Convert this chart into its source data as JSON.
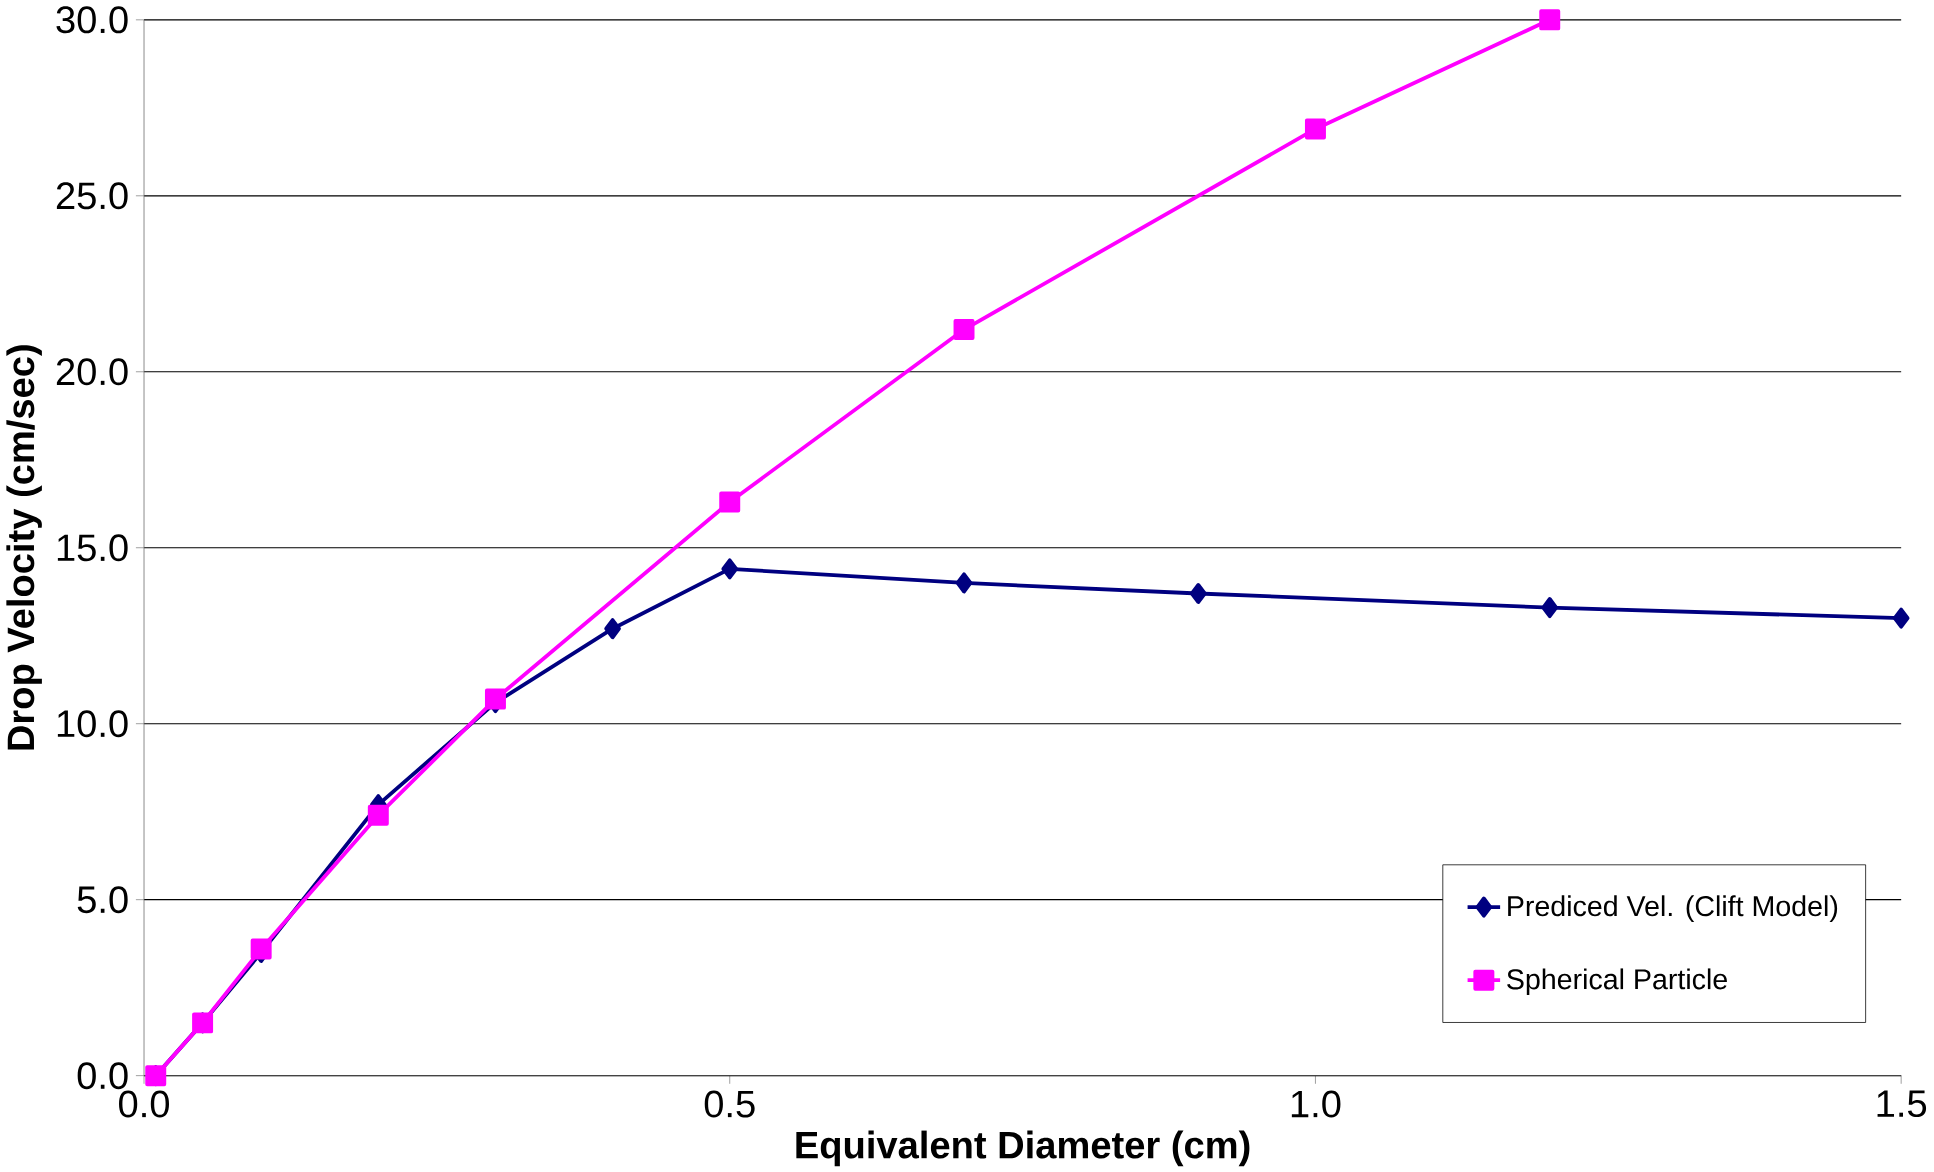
{
  "chart_data": {
    "type": "line",
    "xlabel": "Equivalent Diameter (cm)",
    "ylabel": "Drop Velocity (cm/sec)",
    "xlim": [
      0,
      1.5
    ],
    "ylim": [
      0,
      30
    ],
    "xticks": [
      {
        "value": 0,
        "label": "0.0"
      },
      {
        "value": 0.5,
        "label": "0.5"
      },
      {
        "value": 1,
        "label": "1.0"
      },
      {
        "value": 1.5,
        "label": "1.5"
      }
    ],
    "yticks": [
      {
        "value": 0,
        "label": "0.0"
      },
      {
        "value": 5,
        "label": "5.0"
      },
      {
        "value": 10,
        "label": "10.0"
      },
      {
        "value": 15,
        "label": "15.0"
      },
      {
        "value": 20,
        "label": "20.0"
      },
      {
        "value": 25,
        "label": "25.0"
      },
      {
        "value": 30,
        "label": "30.0"
      }
    ],
    "grid": "y",
    "legend": "bottom right",
    "series": [
      {
        "name": "Prediced Vel. (Clift Model)",
        "color": "#000080",
        "marker": "diamond",
        "x": [
          0.01,
          0.05,
          0.1,
          0.2,
          0.3,
          0.4,
          0.5,
          0.7,
          0.9,
          1.2,
          1.5
        ],
        "values": [
          0,
          1.5,
          3.5,
          7.7,
          10.6,
          12.7,
          14.4,
          14.0,
          13.7,
          13.3,
          13.0
        ]
      },
      {
        "name": "Spherical Particle",
        "color": "#ff00ff",
        "marker": "square",
        "x": [
          0.01,
          0.05,
          0.1,
          0.2,
          0.3,
          0.5,
          0.7,
          1.0,
          1.2
        ],
        "values": [
          0,
          1.5,
          3.6,
          7.4,
          10.7,
          16.3,
          21.2,
          26.9,
          30.0
        ]
      }
    ]
  }
}
